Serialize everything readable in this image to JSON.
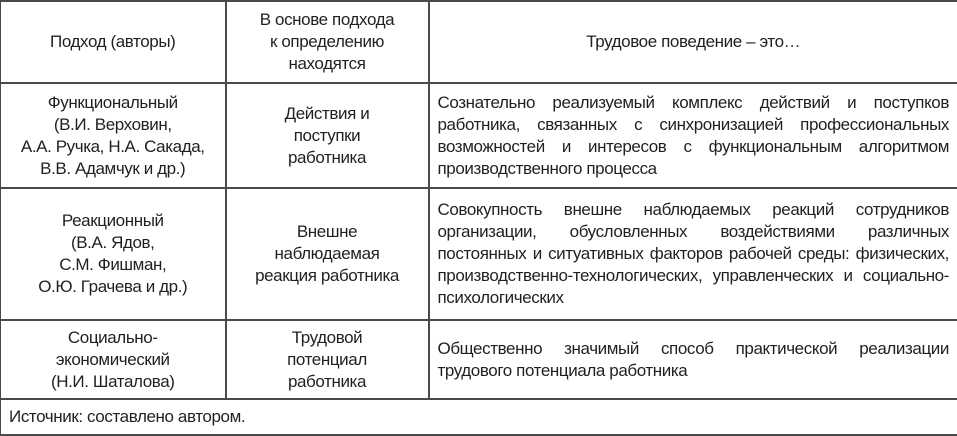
{
  "header": {
    "col1": [
      "Подход (авторы)"
    ],
    "col2": [
      "В основе подхода",
      "к определению",
      "находятся"
    ],
    "col3": [
      "Трудовое поведение – это…"
    ]
  },
  "rows": [
    {
      "approach": [
        "Функциональный",
        "(В.И. Верховин,",
        "А.А. Ручка, Н.А. Сакада,",
        "В.В. Адамчук и др.)"
      ],
      "basis": [
        "Действия и",
        "поступки",
        "работника"
      ],
      "definition": "Сознательно реализуемый комплекс действий и поступков работника, связанных с синхронизацией профессиональных возможностей и интересов с функциональным алгоритмом производственного процесса"
    },
    {
      "approach": [
        "Реакционный",
        "(В.А. Ядов,",
        "С.М. Фишман,",
        "О.Ю. Грачева и др.)"
      ],
      "basis": [
        "Внешне",
        "наблюдаемая",
        "реакция работника"
      ],
      "definition": "Совокупность внешне наблюдаемых реакций сотрудников организации, обусловленных воздействиями различных постоянных и ситуативных факторов рабочей среды: физических, производственно-технологических, управленческих и социально-психологических"
    },
    {
      "approach": [
        "Социально-",
        "экономический",
        "(Н.И. Шаталова)"
      ],
      "basis": [
        "Трудовой",
        "потенциал",
        "работника"
      ],
      "definition": "Общественно значимый способ практической реализации трудового потенциала работника"
    }
  ],
  "source": "Источник: составлено автором."
}
